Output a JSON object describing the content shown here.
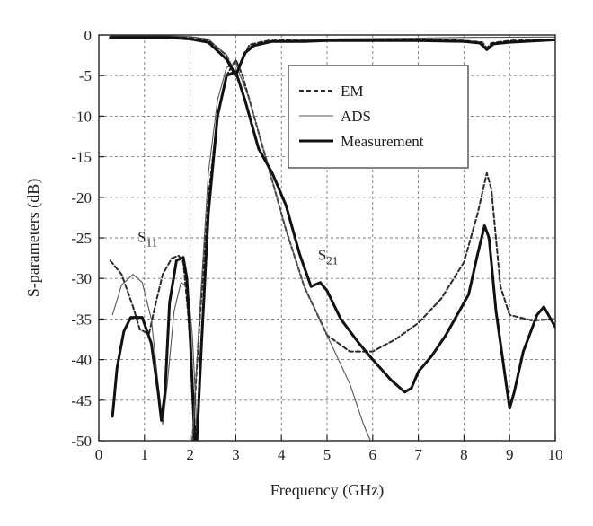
{
  "chart_data": {
    "type": "line",
    "xlabel": "Frequency (GHz)",
    "ylabel": "S-parameters (dB)",
    "xlim": [
      0,
      10
    ],
    "ylim": [
      -50,
      0
    ],
    "xticks": [
      "0",
      "1",
      "2",
      "3",
      "4",
      "5",
      "6",
      "7",
      "8",
      "9",
      "10"
    ],
    "yticks": [
      "0",
      "-5",
      "-10",
      "-15",
      "-20",
      "-25",
      "-30",
      "-35",
      "-40",
      "-45",
      "-50"
    ],
    "grid": true,
    "legend_position": "top-right",
    "legend": [
      {
        "label": "EM",
        "style": "dashed"
      },
      {
        "label": "ADS",
        "style": "thin-solid"
      },
      {
        "label": "Measurement",
        "style": "thick-solid"
      }
    ],
    "annotations": [
      {
        "base": "S",
        "sub": "11",
        "x": 0.85,
        "y": -25.5
      },
      {
        "base": "S",
        "sub": "21",
        "x": 4.8,
        "y": -27.7
      }
    ],
    "series": [
      {
        "name": "S11 EM",
        "style": "dashed",
        "points": [
          [
            0.25,
            -27.8
          ],
          [
            0.5,
            -29.5
          ],
          [
            0.75,
            -33.5
          ],
          [
            0.9,
            -36.3
          ],
          [
            1.1,
            -36.8
          ],
          [
            1.25,
            -33
          ],
          [
            1.4,
            -29.5
          ],
          [
            1.6,
            -27.5
          ],
          [
            1.75,
            -27.2
          ],
          [
            1.85,
            -28
          ],
          [
            1.95,
            -34
          ],
          [
            2.05,
            -42
          ],
          [
            2.1,
            -48
          ],
          [
            2.15,
            -50
          ]
        ]
      },
      {
        "name": "S11 ADS",
        "style": "thin-solid",
        "points": [
          [
            0.3,
            -34.5
          ],
          [
            0.5,
            -30.8
          ],
          [
            0.75,
            -29.5
          ],
          [
            0.95,
            -30.5
          ],
          [
            1.15,
            -35
          ],
          [
            1.3,
            -43
          ],
          [
            1.4,
            -48
          ],
          [
            1.5,
            -43
          ],
          [
            1.65,
            -34
          ],
          [
            1.8,
            -30.5
          ],
          [
            1.95,
            -31
          ],
          [
            2.05,
            -37
          ],
          [
            2.12,
            -45
          ],
          [
            2.15,
            -50
          ]
        ]
      },
      {
        "name": "S11 Measurement",
        "style": "thick-solid",
        "points": [
          [
            0.3,
            -47
          ],
          [
            0.4,
            -41
          ],
          [
            0.55,
            -36.5
          ],
          [
            0.7,
            -34.8
          ],
          [
            0.95,
            -34.8
          ],
          [
            1.15,
            -38
          ],
          [
            1.3,
            -44
          ],
          [
            1.37,
            -47.5
          ],
          [
            1.45,
            -44
          ],
          [
            1.55,
            -33
          ],
          [
            1.7,
            -27.8
          ],
          [
            1.85,
            -27.4
          ],
          [
            1.93,
            -30
          ],
          [
            2.0,
            -37
          ],
          [
            2.1,
            -50
          ]
        ]
      },
      {
        "name": "S21 EM",
        "style": "dashed",
        "points": [
          [
            2.05,
            -50
          ],
          [
            2.2,
            -36
          ],
          [
            2.4,
            -20
          ],
          [
            2.6,
            -10
          ],
          [
            2.8,
            -5
          ],
          [
            3.0,
            -3
          ],
          [
            3.15,
            -5
          ],
          [
            3.4,
            -10
          ],
          [
            3.7,
            -16
          ],
          [
            4.1,
            -24
          ],
          [
            4.5,
            -31
          ],
          [
            5.0,
            -37
          ],
          [
            5.5,
            -39
          ],
          [
            6.0,
            -39
          ],
          [
            6.5,
            -37.5
          ],
          [
            7.0,
            -35.5
          ],
          [
            7.5,
            -32.5
          ],
          [
            8.0,
            -28
          ],
          [
            8.3,
            -22
          ],
          [
            8.5,
            -17
          ],
          [
            8.6,
            -19
          ],
          [
            8.8,
            -31
          ],
          [
            9.0,
            -34.5
          ],
          [
            9.5,
            -35.2
          ],
          [
            10,
            -35
          ]
        ]
      },
      {
        "name": "S21 ADS",
        "style": "thin-solid",
        "points": [
          [
            2.05,
            -50
          ],
          [
            2.2,
            -35
          ],
          [
            2.4,
            -17
          ],
          [
            2.6,
            -8
          ],
          [
            2.8,
            -4
          ],
          [
            3.0,
            -3.5
          ],
          [
            3.3,
            -8
          ],
          [
            3.7,
            -16
          ],
          [
            4.1,
            -24
          ],
          [
            4.5,
            -31
          ],
          [
            5.0,
            -37
          ],
          [
            5.5,
            -43
          ],
          [
            5.8,
            -48
          ],
          [
            5.95,
            -50
          ]
        ]
      },
      {
        "name": "S21 Measurement",
        "style": "thick-solid",
        "points": [
          [
            2.15,
            -50
          ],
          [
            2.25,
            -38
          ],
          [
            2.4,
            -22
          ],
          [
            2.6,
            -10
          ],
          [
            2.8,
            -5
          ],
          [
            3.0,
            -4.5
          ],
          [
            3.2,
            -8
          ],
          [
            3.5,
            -14
          ],
          [
            3.8,
            -17
          ],
          [
            4.1,
            -21
          ],
          [
            4.4,
            -27
          ],
          [
            4.65,
            -31
          ],
          [
            4.85,
            -30.5
          ],
          [
            5.0,
            -31.5
          ],
          [
            5.3,
            -35
          ],
          [
            5.7,
            -38
          ],
          [
            6.0,
            -40
          ],
          [
            6.4,
            -42.5
          ],
          [
            6.7,
            -44
          ],
          [
            6.85,
            -43.5
          ],
          [
            7.0,
            -41.5
          ],
          [
            7.3,
            -39.5
          ],
          [
            7.6,
            -37
          ],
          [
            8.0,
            -33
          ],
          [
            8.1,
            -32
          ],
          [
            8.3,
            -27
          ],
          [
            8.45,
            -23.5
          ],
          [
            8.55,
            -25
          ],
          [
            8.7,
            -34
          ],
          [
            8.9,
            -42
          ],
          [
            9.0,
            -46
          ],
          [
            9.1,
            -44
          ],
          [
            9.3,
            -39
          ],
          [
            9.6,
            -34.5
          ],
          [
            9.75,
            -33.5
          ],
          [
            9.9,
            -35
          ],
          [
            10,
            -36
          ]
        ]
      },
      {
        "name": "S11 EM upper",
        "style": "dashed",
        "points": [
          [
            0.25,
            -0.2
          ],
          [
            1.5,
            -0.2
          ],
          [
            2.0,
            -0.35
          ],
          [
            2.4,
            -0.6
          ],
          [
            2.8,
            -2.5
          ],
          [
            3.0,
            -5
          ],
          [
            3.3,
            -1.2
          ],
          [
            3.7,
            -0.7
          ],
          [
            5,
            -0.6
          ],
          [
            7,
            -0.5
          ],
          [
            8,
            -0.7
          ],
          [
            8.4,
            -0.9
          ],
          [
            8.5,
            -1.6
          ],
          [
            8.6,
            -1.0
          ],
          [
            9,
            -0.7
          ],
          [
            10,
            -0.6
          ]
        ]
      },
      {
        "name": "S11 ADS upper",
        "style": "thin-solid",
        "points": [
          [
            0.25,
            -0.1
          ],
          [
            1.5,
            -0.1
          ],
          [
            2.0,
            -0.2
          ],
          [
            2.4,
            -0.5
          ],
          [
            2.8,
            -2.5
          ],
          [
            3.0,
            -5
          ],
          [
            3.3,
            -1.4
          ],
          [
            3.7,
            -0.8
          ],
          [
            5,
            -0.5
          ],
          [
            7,
            -0.4
          ],
          [
            8,
            -0.3
          ],
          [
            10,
            -0.25
          ]
        ]
      },
      {
        "name": "S11 Measurement upper",
        "style": "thick-solid",
        "points": [
          [
            0.25,
            -0.3
          ],
          [
            1.5,
            -0.3
          ],
          [
            2.0,
            -0.5
          ],
          [
            2.4,
            -0.9
          ],
          [
            2.8,
            -3.0
          ],
          [
            3.0,
            -5
          ],
          [
            3.2,
            -2.2
          ],
          [
            3.4,
            -1.3
          ],
          [
            3.8,
            -0.8
          ],
          [
            4.5,
            -0.8
          ],
          [
            5,
            -0.7
          ],
          [
            6,
            -0.7
          ],
          [
            7,
            -0.7
          ],
          [
            8,
            -0.8
          ],
          [
            8.35,
            -1.0
          ],
          [
            8.5,
            -1.8
          ],
          [
            8.65,
            -1.1
          ],
          [
            9,
            -0.9
          ],
          [
            10,
            -0.6
          ]
        ]
      }
    ]
  }
}
